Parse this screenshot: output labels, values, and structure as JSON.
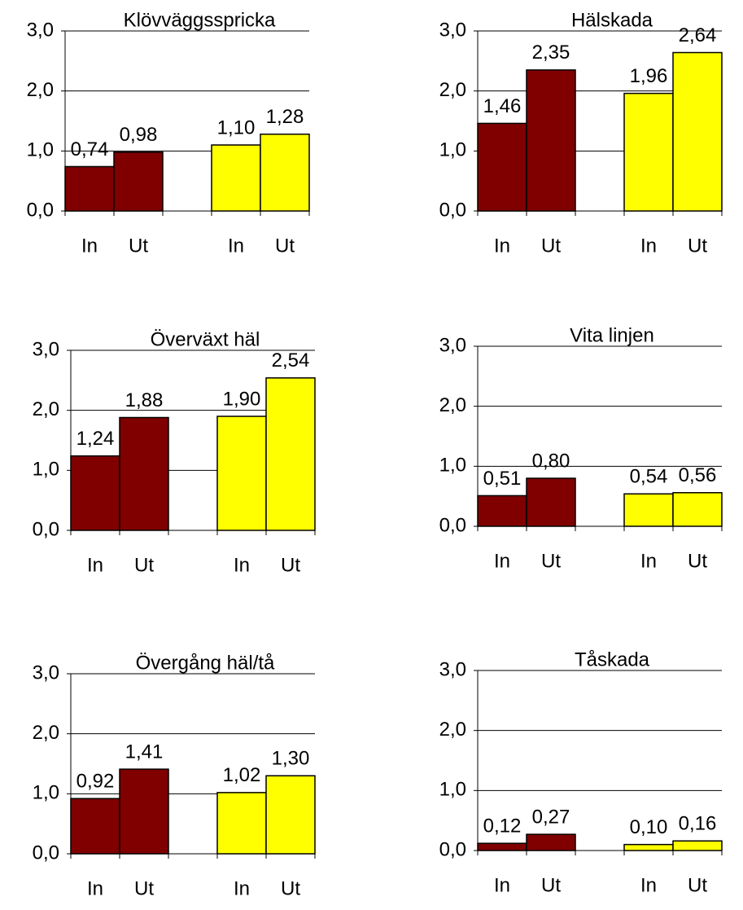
{
  "chart_data": [
    {
      "type": "bar",
      "title": "Klövväggsspricka",
      "categories": [
        "In",
        "Ut",
        null,
        "In",
        "Ut"
      ],
      "values": [
        0.74,
        0.98,
        null,
        1.1,
        1.28
      ],
      "value_labels": [
        "0,74",
        "0,98",
        null,
        "1,10",
        "1,28"
      ],
      "colors": [
        "#800000",
        "#800000",
        null,
        "#ffff00",
        "#ffff00"
      ],
      "ylim": [
        0,
        3
      ],
      "yticks": [
        {
          "value": 0,
          "label": "0,0"
        },
        {
          "value": 1,
          "label": "1,0"
        },
        {
          "value": 2,
          "label": "2,0"
        },
        {
          "value": 3,
          "label": "3,0"
        }
      ],
      "grid": true
    },
    {
      "type": "bar",
      "title": "Hälskada",
      "categories": [
        "In",
        "Ut",
        null,
        "In",
        "Ut"
      ],
      "values": [
        1.46,
        2.35,
        null,
        1.96,
        2.64
      ],
      "value_labels": [
        "1,46",
        "2,35",
        null,
        "1,96",
        "2,64"
      ],
      "colors": [
        "#800000",
        "#800000",
        null,
        "#ffff00",
        "#ffff00"
      ],
      "ylim": [
        0,
        3
      ],
      "yticks": [
        {
          "value": 0,
          "label": "0,0"
        },
        {
          "value": 1,
          "label": "1,0"
        },
        {
          "value": 2,
          "label": "2,0"
        },
        {
          "value": 3,
          "label": "3,0"
        }
      ],
      "grid": true
    },
    {
      "type": "bar",
      "title": "Överväxt häl",
      "categories": [
        "In",
        "Ut",
        null,
        "In",
        "Ut"
      ],
      "values": [
        1.24,
        1.88,
        null,
        1.9,
        2.54
      ],
      "value_labels": [
        "1,24",
        "1,88",
        null,
        "1,90",
        "2,54"
      ],
      "colors": [
        "#800000",
        "#800000",
        null,
        "#ffff00",
        "#ffff00"
      ],
      "ylim": [
        0,
        3
      ],
      "yticks": [
        {
          "value": 0,
          "label": "0,0"
        },
        {
          "value": 1,
          "label": "1,0"
        },
        {
          "value": 2,
          "label": "2,0"
        },
        {
          "value": 3,
          "label": "3,0"
        }
      ],
      "grid": true
    },
    {
      "type": "bar",
      "title": "Vita linjen",
      "categories": [
        "In",
        "Ut",
        null,
        "In",
        "Ut"
      ],
      "values": [
        0.51,
        0.8,
        null,
        0.54,
        0.56
      ],
      "value_labels": [
        "0,51",
        "0,80",
        null,
        "0,54",
        "0,56"
      ],
      "colors": [
        "#800000",
        "#800000",
        null,
        "#ffff00",
        "#ffff00"
      ],
      "ylim": [
        0,
        3
      ],
      "yticks": [
        {
          "value": 0,
          "label": "0,0"
        },
        {
          "value": 1,
          "label": "1,0"
        },
        {
          "value": 2,
          "label": "2,0"
        },
        {
          "value": 3,
          "label": "3,0"
        }
      ],
      "grid": true
    },
    {
      "type": "bar",
      "title": "Övergång häl/tå",
      "categories": [
        "In",
        "Ut",
        null,
        "In",
        "Ut"
      ],
      "values": [
        0.92,
        1.41,
        null,
        1.02,
        1.3
      ],
      "value_labels": [
        "0,92",
        "1,41",
        null,
        "1,02",
        "1,30"
      ],
      "colors": [
        "#800000",
        "#800000",
        null,
        "#ffff00",
        "#ffff00"
      ],
      "ylim": [
        0,
        3
      ],
      "yticks": [
        {
          "value": 0,
          "label": "0,0"
        },
        {
          "value": 1,
          "label": "1,0"
        },
        {
          "value": 2,
          "label": "2,0"
        },
        {
          "value": 3,
          "label": "3,0"
        }
      ],
      "grid": true
    },
    {
      "type": "bar",
      "title": "Tåskada",
      "categories": [
        "In",
        "Ut",
        null,
        "In",
        "Ut"
      ],
      "values": [
        0.12,
        0.27,
        null,
        0.1,
        0.16
      ],
      "value_labels": [
        "0,12",
        "0,27",
        null,
        "0,10",
        "0,16"
      ],
      "colors": [
        "#800000",
        "#800000",
        null,
        "#ffff00",
        "#ffff00"
      ],
      "ylim": [
        0,
        3
      ],
      "yticks": [
        {
          "value": 0,
          "label": "0,0"
        },
        {
          "value": 1,
          "label": "1,0"
        },
        {
          "value": 2,
          "label": "2,0"
        },
        {
          "value": 3,
          "label": "3,0"
        }
      ],
      "grid": true
    }
  ]
}
